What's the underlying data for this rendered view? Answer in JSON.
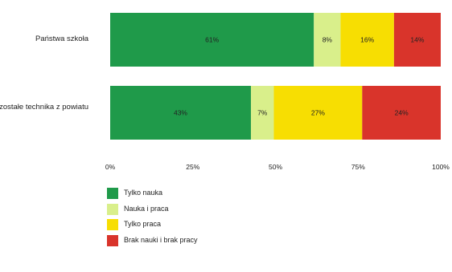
{
  "chart_data": {
    "type": "bar",
    "orientation": "horizontal",
    "stacked": true,
    "normalized": true,
    "categories": [
      "Państwa szkoła",
      "Pozostałe technika z powiatu"
    ],
    "series": [
      {
        "name": "Tylko nauka",
        "color": "#1f9a4a",
        "values": [
          61,
          43
        ],
        "labels": [
          "61%",
          "43%"
        ]
      },
      {
        "name": "Nauka i praca",
        "color": "#d9ef8b",
        "values": [
          8,
          7
        ],
        "labels": [
          "8%",
          "7%"
        ]
      },
      {
        "name": "Tylko praca",
        "color": "#f7de02",
        "values": [
          16,
          27
        ],
        "labels": [
          "16%",
          "27%"
        ]
      },
      {
        "name": "Brak nauki i brak pracy",
        "color": "#d9342b",
        "values": [
          14,
          24
        ],
        "labels": [
          "14%",
          "24%"
        ]
      }
    ],
    "xlim": [
      0,
      100
    ],
    "xticks": [
      "0%",
      "25%",
      "50%",
      "75%",
      "100%"
    ],
    "title": "",
    "xlabel": "",
    "ylabel": "",
    "grid": false,
    "legend_position": "bottom-left"
  }
}
